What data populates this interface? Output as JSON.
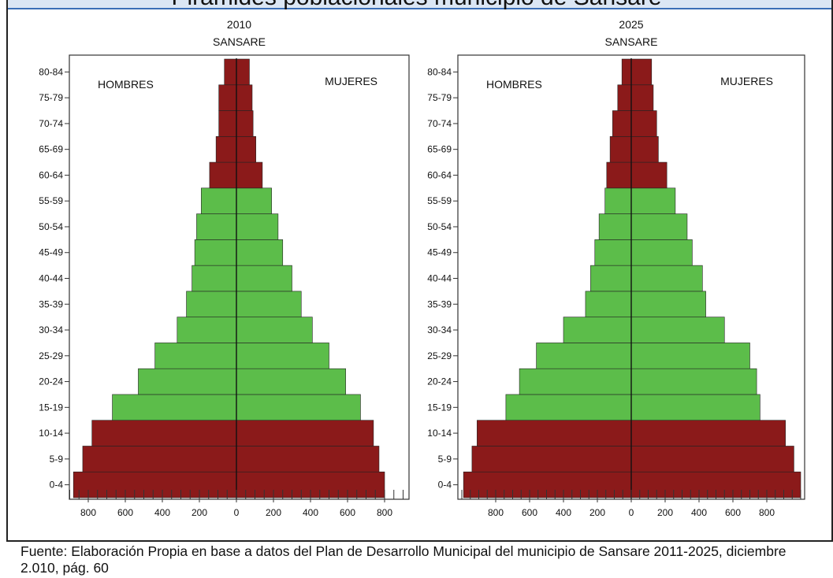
{
  "page_title": "Pirámides poblacionales municipio de Sansare",
  "source_text": "Fuente: Elaboración Propia en base a datos del Plan de Desarrollo Municipal del municipio de Sansare 2011-2025, diciembre 2.010, pág. 60",
  "colors": {
    "dependent": "#8b1a1a",
    "working_age": "#5cbd4a",
    "frame": "#222222"
  },
  "chart_data": [
    {
      "type": "bar",
      "orientation": "horizontal-pyramid",
      "title": "2010",
      "subtitle": "SANSARE",
      "left_label": "HOMBRES",
      "right_label": "MUJERES",
      "categories": [
        "0-4",
        "5-9",
        "10-14",
        "15-19",
        "20-24",
        "25-29",
        "30-34",
        "35-39",
        "40-44",
        "45-49",
        "50-54",
        "55-59",
        "60-64",
        "65-69",
        "70-74",
        "75-79",
        "80-84"
      ],
      "xticks": [
        "800",
        "600",
        "400",
        "200",
        "0",
        "200",
        "400",
        "600",
        "800"
      ],
      "xlim": [
        -850,
        850
      ],
      "series": [
        {
          "name": "HOMBRES",
          "values": [
            880,
            830,
            780,
            670,
            530,
            440,
            320,
            270,
            240,
            225,
            215,
            190,
            145,
            110,
            95,
            95,
            65
          ]
        },
        {
          "name": "MUJERES",
          "values": [
            800,
            770,
            740,
            670,
            590,
            500,
            410,
            350,
            300,
            250,
            225,
            190,
            140,
            105,
            90,
            85,
            70
          ]
        }
      ]
    },
    {
      "type": "bar",
      "orientation": "horizontal-pyramid",
      "title": "2025",
      "subtitle": "SANSARE",
      "left_label": "HOMBRES",
      "right_label": "MUJERES",
      "categories": [
        "0-4",
        "5-9",
        "10-14",
        "15-19",
        "20-24",
        "25-29",
        "30-34",
        "35-39",
        "40-44",
        "45-49",
        "50-54",
        "55-59",
        "60-64",
        "65-69",
        "70-74",
        "75-79",
        "80-84"
      ],
      "xticks": [
        "800",
        "600",
        "400",
        "200",
        "0",
        "200",
        "400",
        "600",
        "800"
      ],
      "xlim": [
        -1000,
        1000
      ],
      "series": [
        {
          "name": "HOMBRES",
          "values": [
            990,
            940,
            910,
            740,
            660,
            560,
            400,
            270,
            240,
            215,
            190,
            155,
            145,
            125,
            110,
            80,
            55
          ]
        },
        {
          "name": "MUJERES",
          "values": [
            1000,
            960,
            910,
            760,
            740,
            700,
            550,
            440,
            420,
            360,
            330,
            260,
            210,
            160,
            150,
            130,
            120
          ]
        }
      ]
    }
  ]
}
